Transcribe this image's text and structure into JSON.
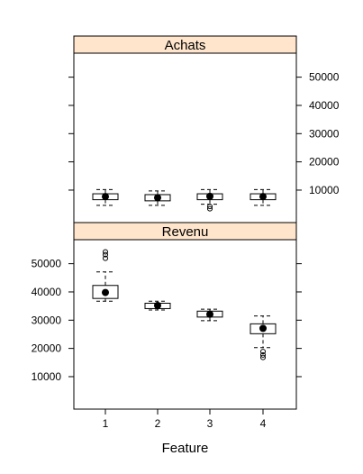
{
  "chart_data": {
    "type": "boxplot",
    "layout": "lattice, two stacked panels sharing x axis, y axes alternating sides",
    "xlabel": "Feature",
    "ylabel": "",
    "categories": [
      "1",
      "2",
      "3",
      "4"
    ],
    "ylim": [
      -1500,
      58500
    ],
    "y_ticks": [
      10000,
      20000,
      30000,
      40000,
      50000
    ],
    "y_tick_labels": [
      "10000",
      "20000",
      "30000",
      "40000",
      "50000"
    ],
    "strip_color": "#ffe5cc",
    "box_color": "#000000",
    "grid": false,
    "panels": [
      {
        "strip": "Achats",
        "y_axis_side": "right",
        "boxes": [
          {
            "category": "1",
            "whisker_low": 4600,
            "q1": 6600,
            "median": 7700,
            "q3": 8700,
            "whisker_high": 10200,
            "outliers": []
          },
          {
            "category": "2",
            "whisker_low": 4600,
            "q1": 6200,
            "median": 7300,
            "q3": 8400,
            "whisker_high": 9700,
            "outliers": []
          },
          {
            "category": "3",
            "whisker_low": 5000,
            "q1": 6600,
            "median": 7800,
            "q3": 8700,
            "whisker_high": 10200,
            "outliers": [
              3400,
              4200
            ]
          },
          {
            "category": "4",
            "whisker_low": 4600,
            "q1": 6600,
            "median": 7700,
            "q3": 8700,
            "whisker_high": 10200,
            "outliers": []
          }
        ]
      },
      {
        "strip": "Revenu",
        "y_axis_side": "left",
        "boxes": [
          {
            "category": "1",
            "whisker_low": 36700,
            "q1": 37700,
            "median": 39800,
            "q3": 42300,
            "whisker_high": 47100,
            "outliers": [
              51900,
              53200,
              54200
            ]
          },
          {
            "category": "2",
            "whisker_low": 33600,
            "q1": 34100,
            "median": 35200,
            "q3": 36000,
            "whisker_high": 36700,
            "outliers": []
          },
          {
            "category": "3",
            "whisker_low": 29800,
            "q1": 31100,
            "median": 32100,
            "q3": 33200,
            "whisker_high": 33900,
            "outliers": []
          },
          {
            "category": "4",
            "whisker_low": 20300,
            "q1": 25200,
            "median": 27100,
            "q3": 28700,
            "whisker_high": 31500,
            "outliers": [
              16800,
              17700,
              18900
            ]
          }
        ]
      }
    ]
  }
}
